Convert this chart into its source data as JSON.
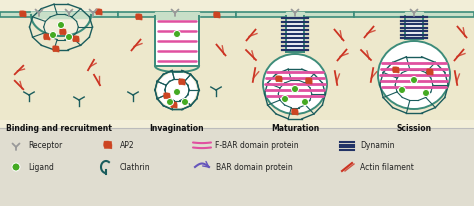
{
  "bg_color": "#f2eed8",
  "legend_bg": "#e0ddd0",
  "membrane_color": "#3d8c7a",
  "membrane_fill": "#c8dfc8",
  "cell_interior": "#ede8cc",
  "clathrin_color": "#1a5c5c",
  "ap2_color": "#cc4422",
  "ligand_color": "#44aa22",
  "fbar_color": "#e050a0",
  "bar_color": "#6655bb",
  "dynamin_color": "#223366",
  "actin_color": "#cc3322",
  "receptor_color": "#999999",
  "panel_labels": [
    "Binding and recruitment",
    "Invagination",
    "Maturation",
    "Scission"
  ],
  "legend_items_row1": [
    "Receptor",
    "AP2",
    "F-BAR domain protein",
    "Dynamin"
  ],
  "legend_items_row2": [
    "Ligand",
    "Clathrin",
    "BAR domain protein",
    "Actin filament"
  ],
  "fig_width": 4.74,
  "fig_height": 2.06,
  "dpi": 100
}
